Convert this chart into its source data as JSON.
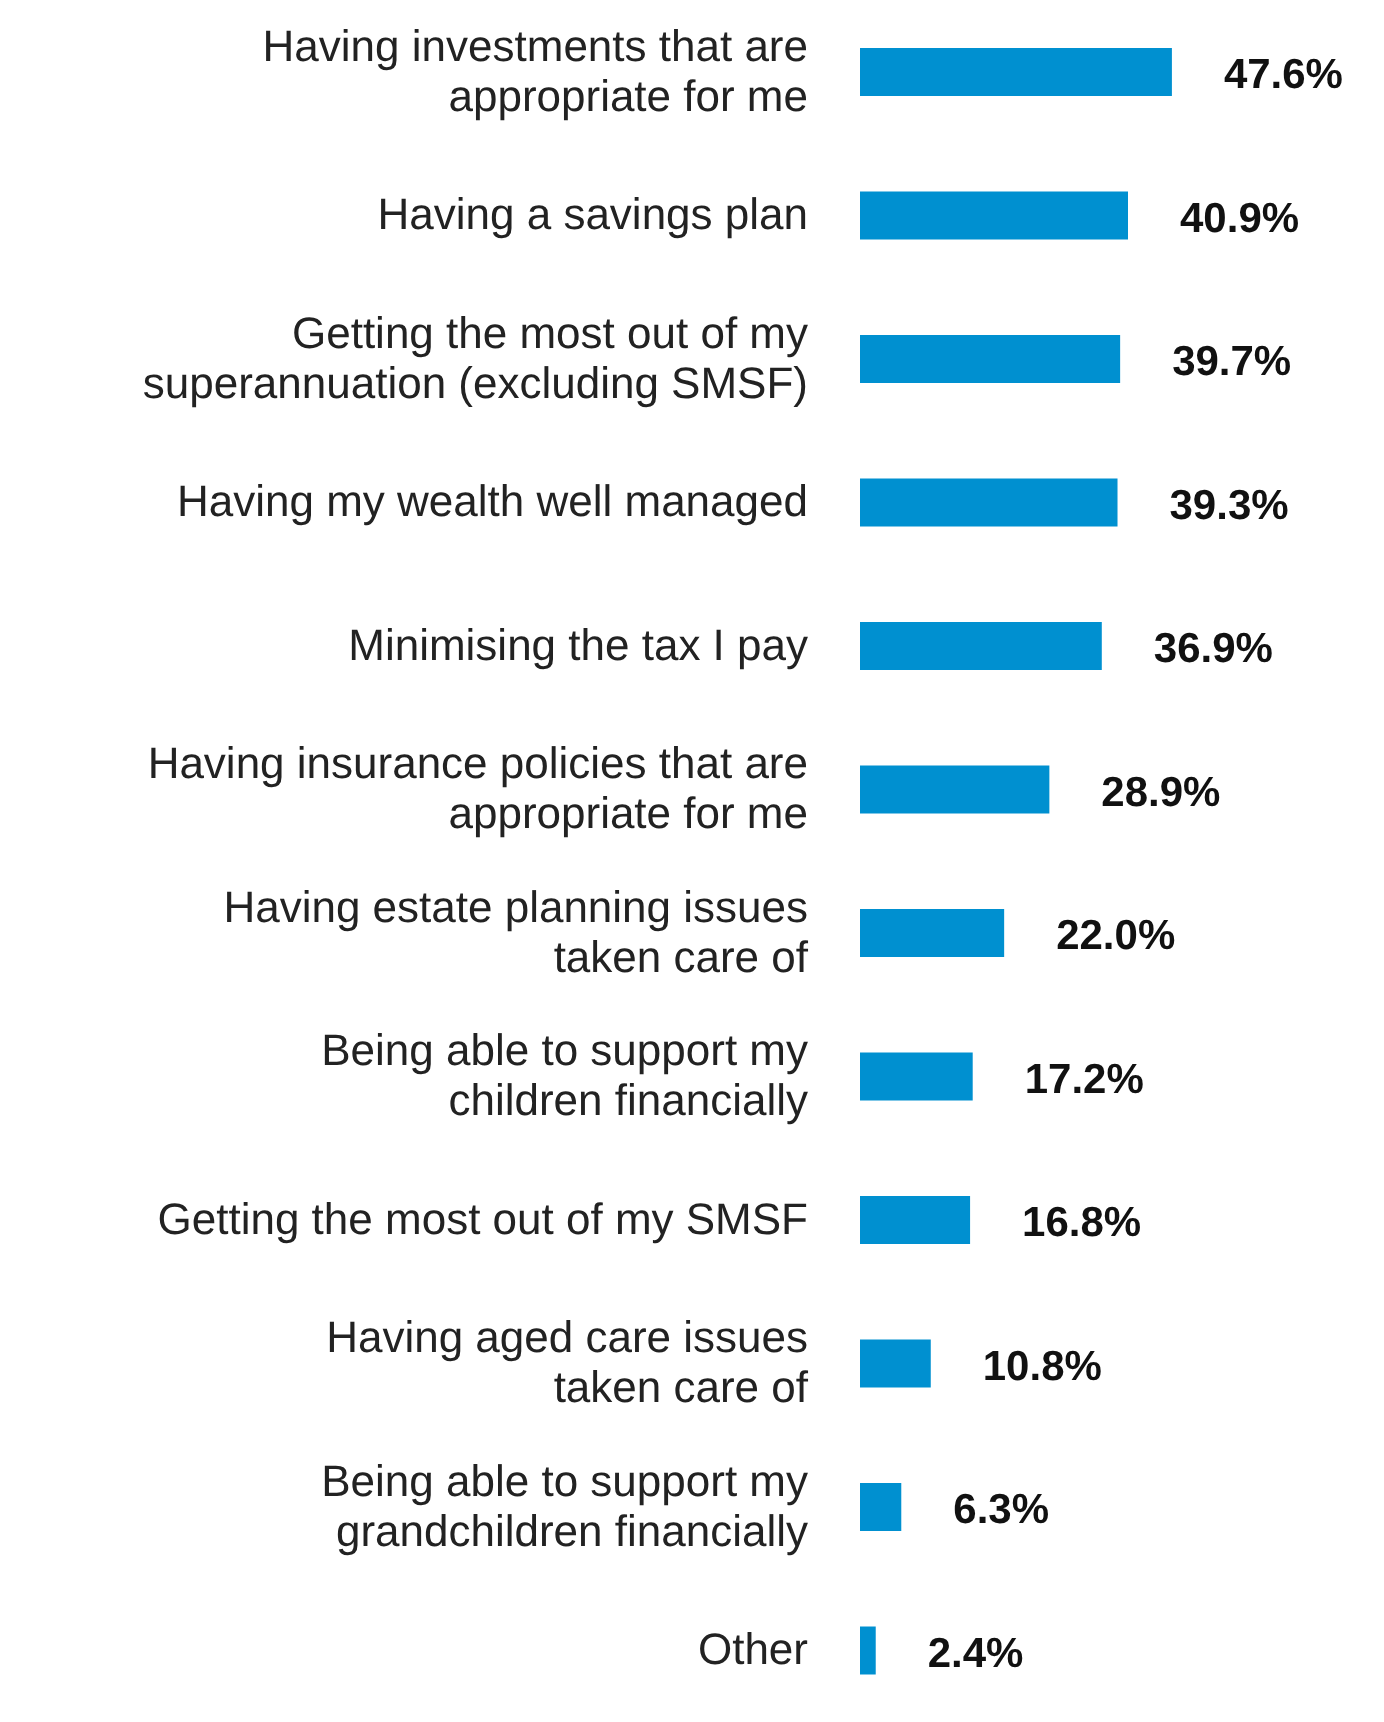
{
  "chart_data": {
    "type": "bar",
    "orientation": "horizontal",
    "categories": [
      "Having investments that are\nappropriate for me",
      "Having a savings plan",
      "Getting the most out of my\nsuperannuation (excluding SMSF)",
      "Having my wealth well managed",
      "Minimising the tax I pay",
      "Having insurance policies that are\nappropriate for me",
      "Having estate planning issues\ntaken care of",
      "Being able to support my\nchildren financially",
      "Getting the most out of my SMSF",
      "Having aged care issues\ntaken care of",
      "Being able to support my\ngrandchildren financially",
      "Other"
    ],
    "values": [
      47.6,
      40.9,
      39.7,
      39.3,
      36.9,
      28.9,
      22.0,
      17.2,
      16.8,
      10.8,
      6.3,
      2.4
    ],
    "value_labels": [
      "47.6%",
      "40.9%",
      "39.7%",
      "39.3%",
      "36.9%",
      "28.9%",
      "22.0%",
      "17.2%",
      "16.8%",
      "10.8%",
      "6.3%",
      "2.4%"
    ],
    "color": "#0090d0",
    "grid": false,
    "legend": false
  }
}
